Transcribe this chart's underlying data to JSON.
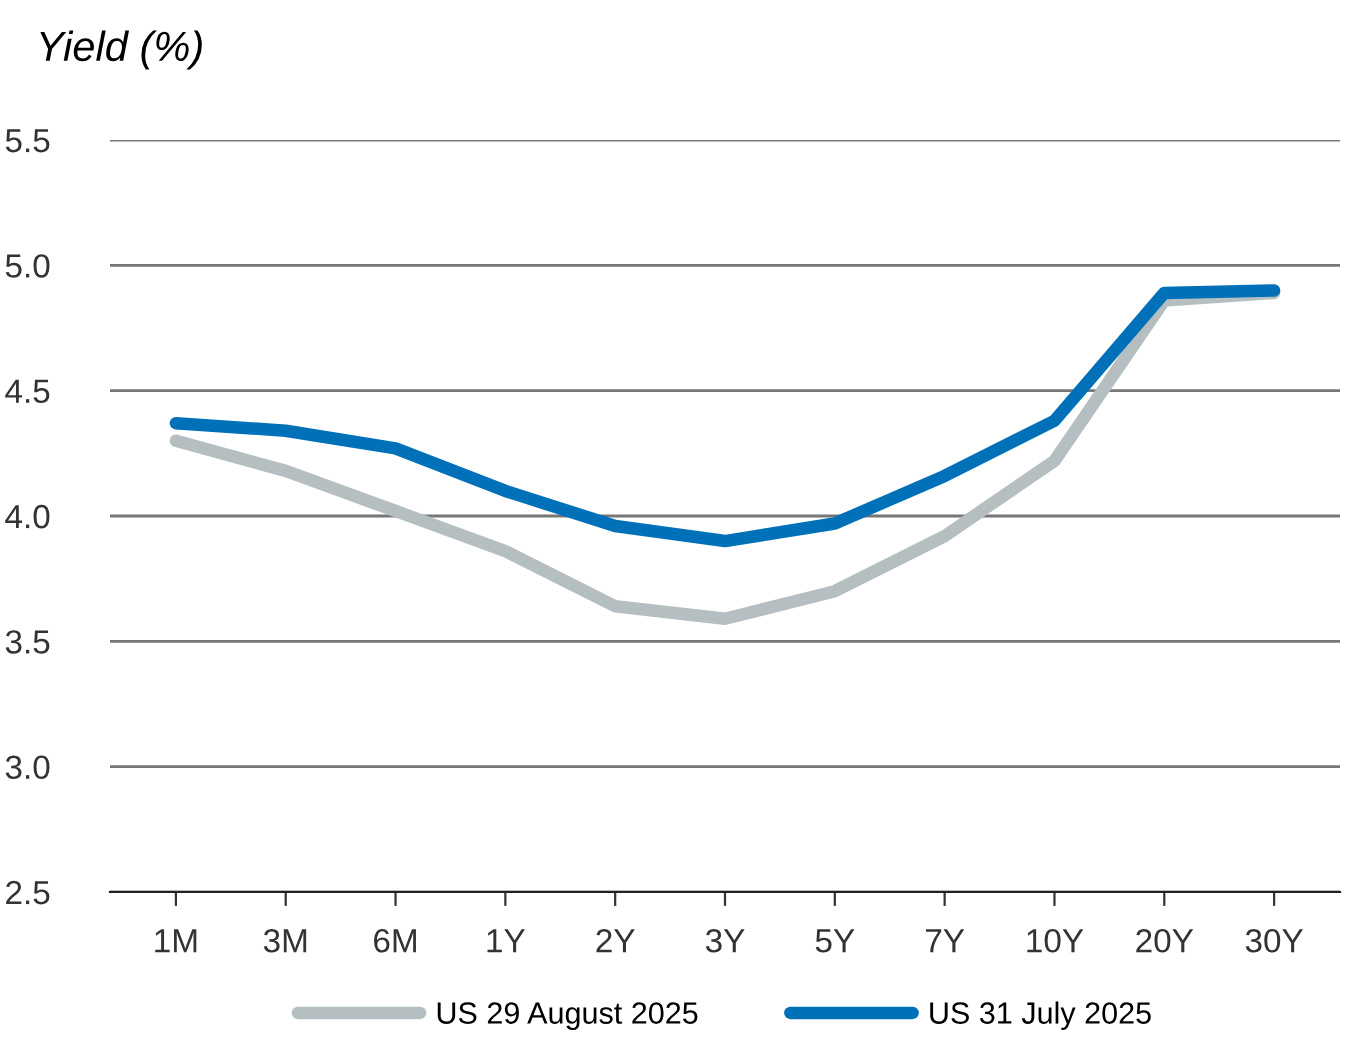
{
  "chart_data": {
    "type": "line",
    "ylabel": "Yield (%)",
    "categories": [
      "1M",
      "3M",
      "6M",
      "1Y",
      "2Y",
      "3Y",
      "5Y",
      "7Y",
      "10Y",
      "20Y",
      "30Y"
    ],
    "series": [
      {
        "name": "US 29 August 2025",
        "color": "#b5bfc2",
        "values": [
          4.3,
          4.18,
          4.02,
          3.86,
          3.64,
          3.59,
          3.7,
          3.92,
          4.22,
          4.86,
          4.89
        ]
      },
      {
        "name": "US 31 July 2025",
        "color": "#0071b9",
        "values": [
          4.37,
          4.34,
          4.27,
          4.1,
          3.96,
          3.9,
          3.97,
          4.16,
          4.38,
          4.89,
          4.9
        ]
      }
    ],
    "ylim": [
      2.5,
      5.5
    ],
    "yticks": [
      {
        "value": 2.5,
        "label": "2.5"
      },
      {
        "value": 3.0,
        "label": "3.0"
      },
      {
        "value": 3.5,
        "label": "3.5"
      },
      {
        "value": 4.0,
        "label": "4.0"
      },
      {
        "value": 4.5,
        "label": "4.5"
      },
      {
        "value": 5.0,
        "label": "5.0"
      },
      {
        "value": 5.5,
        "label": "5.5"
      }
    ],
    "grid": "y",
    "legend": "bottom",
    "marker": "none",
    "line_style": "solid"
  }
}
